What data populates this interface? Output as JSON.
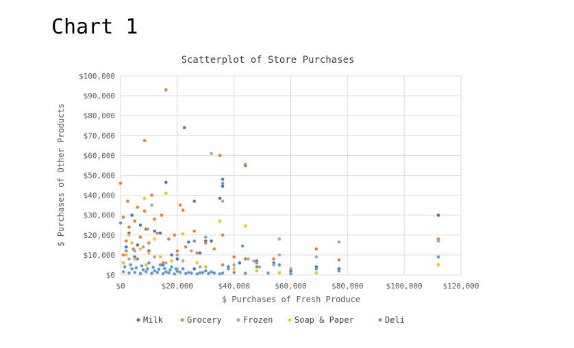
{
  "heading": "Chart 1",
  "chart_data": {
    "type": "scatter",
    "title": "Scatterplot of Store Purchases",
    "xlabel": "$ Purchases of Fresh Produce",
    "ylabel": "$ Purchases of Other Products",
    "xlim": [
      0,
      120000
    ],
    "ylim": [
      0,
      100000
    ],
    "x_ticks": [
      "$0",
      "$20,000",
      "$40,000",
      "$60,000",
      "$80,000",
      "$100,000",
      "$120,000"
    ],
    "y_ticks": [
      "$0",
      "$10,000",
      "$20,000",
      "$30,000",
      "$40,000",
      "$50,000",
      "$60,000",
      "$70,000",
      "$80,000",
      "$90,000",
      "$100,000"
    ],
    "grid": true,
    "legend_position": "bottom",
    "series": [
      {
        "name": "Milk",
        "color": "#4472c4",
        "points": [
          [
            22500,
            74000
          ],
          [
            16000,
            46500
          ],
          [
            26000,
            37000
          ],
          [
            35000,
            38500
          ],
          [
            36000,
            48000
          ],
          [
            36000,
            44500
          ],
          [
            44000,
            55000
          ],
          [
            112000,
            30000
          ],
          [
            4000,
            30000
          ],
          [
            7000,
            25000
          ],
          [
            9000,
            23000
          ],
          [
            12000,
            22000
          ],
          [
            14000,
            21000
          ],
          [
            24000,
            16500
          ],
          [
            30000,
            17000
          ],
          [
            32000,
            17000
          ],
          [
            3000,
            21000
          ],
          [
            6000,
            15000
          ],
          [
            10000,
            12000
          ],
          [
            18000,
            10000
          ],
          [
            2000,
            14000
          ],
          [
            5000,
            9000
          ],
          [
            28000,
            11000
          ],
          [
            48000,
            7000
          ],
          [
            54000,
            6000
          ],
          [
            69000,
            4000
          ],
          [
            77000,
            3000
          ],
          [
            60000,
            2000
          ],
          [
            42000,
            6000
          ],
          [
            38000,
            4000
          ],
          [
            20000,
            8000
          ],
          [
            1000,
            6000
          ],
          [
            15000,
            5000
          ],
          [
            26000,
            3000
          ]
        ]
      },
      {
        "name": "Grocery",
        "color": "#ed7d31",
        "points": [
          [
            16000,
            93000
          ],
          [
            8500,
            67500
          ],
          [
            0,
            46000
          ],
          [
            35000,
            60000
          ],
          [
            44000,
            55500
          ],
          [
            2500,
            37000
          ],
          [
            6000,
            34000
          ],
          [
            11000,
            40000
          ],
          [
            21000,
            35000
          ],
          [
            22000,
            32500
          ],
          [
            8500,
            32000
          ],
          [
            12000,
            28000
          ],
          [
            14500,
            30000
          ],
          [
            1000,
            29000
          ],
          [
            5000,
            27000
          ],
          [
            9500,
            23000
          ],
          [
            13000,
            21000
          ],
          [
            19000,
            20000
          ],
          [
            26000,
            22000
          ],
          [
            36000,
            20000
          ],
          [
            3000,
            24000
          ],
          [
            7000,
            19000
          ],
          [
            10000,
            16000
          ],
          [
            17000,
            18000
          ],
          [
            23000,
            14000
          ],
          [
            30000,
            16000
          ],
          [
            2000,
            17000
          ],
          [
            4500,
            13000
          ],
          [
            20000,
            12000
          ],
          [
            27000,
            11000
          ],
          [
            33000,
            13000
          ],
          [
            40000,
            9000
          ],
          [
            44000,
            8000
          ],
          [
            54000,
            8000
          ],
          [
            69000,
            13000
          ],
          [
            77000,
            7500
          ],
          [
            112000,
            18000
          ],
          [
            48000,
            6000
          ],
          [
            1000,
            10000
          ],
          [
            5000,
            8000
          ],
          [
            15000,
            6000
          ],
          [
            36000,
            5000
          ]
        ]
      },
      {
        "name": "Frozen",
        "color": "#a5a5a5",
        "points": [
          [
            32000,
            61000
          ],
          [
            36000,
            37000
          ],
          [
            11000,
            35000
          ],
          [
            56000,
            18000
          ],
          [
            56000,
            10000
          ],
          [
            77000,
            16500
          ],
          [
            112000,
            17000
          ],
          [
            69000,
            9000
          ],
          [
            47000,
            7000
          ],
          [
            45000,
            8000
          ],
          [
            30000,
            19000
          ],
          [
            25000,
            12000
          ],
          [
            20000,
            10000
          ],
          [
            8000,
            14000
          ],
          [
            3000,
            8000
          ],
          [
            40000,
            5000
          ],
          [
            54000,
            5000
          ],
          [
            16000,
            6000
          ],
          [
            60000,
            3000
          ],
          [
            28000,
            4000
          ],
          [
            12000,
            9000
          ],
          [
            5000,
            12000
          ],
          [
            49000,
            4000
          ],
          [
            22000,
            7000
          ]
        ]
      },
      {
        "name": "Soap & Paper",
        "color": "#ffc000",
        "points": [
          [
            16000,
            41000
          ],
          [
            8500,
            38500
          ],
          [
            35000,
            27000
          ],
          [
            44000,
            24500
          ],
          [
            22000,
            20500
          ],
          [
            12000,
            18000
          ],
          [
            4000,
            16000
          ],
          [
            7000,
            13000
          ],
          [
            10000,
            11000
          ],
          [
            3000,
            20000
          ],
          [
            14000,
            9000
          ],
          [
            18000,
            7000
          ],
          [
            2000,
            10000
          ],
          [
            5000,
            8000
          ],
          [
            112000,
            5000
          ],
          [
            27000,
            6000
          ],
          [
            40000,
            3000
          ],
          [
            56000,
            1000
          ],
          [
            69000,
            1000
          ],
          [
            30000,
            4000
          ],
          [
            1000,
            6000
          ],
          [
            9000,
            5000
          ],
          [
            20000,
            3000
          ],
          [
            48000,
            2000
          ]
        ]
      },
      {
        "name": "Deli",
        "color": "#5b9bd5",
        "points": [
          [
            36000,
            46000
          ],
          [
            43000,
            14500
          ],
          [
            26000,
            17000
          ],
          [
            112000,
            9000
          ],
          [
            56000,
            5000
          ],
          [
            69000,
            3000
          ],
          [
            77000,
            2000
          ],
          [
            0,
            26000
          ],
          [
            2000,
            12000
          ],
          [
            6000,
            8000
          ],
          [
            10000,
            6000
          ],
          [
            14000,
            5000
          ],
          [
            18000,
            4000
          ],
          [
            22000,
            3000
          ],
          [
            30000,
            2000
          ],
          [
            38000,
            3000
          ],
          [
            48000,
            4000
          ],
          [
            4000,
            3000
          ],
          [
            8000,
            2500
          ],
          [
            12000,
            2000
          ],
          [
            16000,
            1500
          ],
          [
            20000,
            1800
          ],
          [
            24000,
            1200
          ],
          [
            28000,
            1000
          ],
          [
            32000,
            1500
          ],
          [
            36000,
            900
          ],
          [
            40000,
            1200
          ],
          [
            44000,
            800
          ],
          [
            52000,
            900
          ],
          [
            60000,
            600
          ],
          [
            1000,
            1500
          ],
          [
            3000,
            900
          ],
          [
            5000,
            1200
          ],
          [
            7000,
            700
          ],
          [
            9000,
            1500
          ],
          [
            11000,
            800
          ],
          [
            13000,
            1200
          ],
          [
            15000,
            600
          ],
          [
            17000,
            1000
          ],
          [
            19000,
            500
          ],
          [
            21000,
            1300
          ],
          [
            23000,
            700
          ],
          [
            25000,
            900
          ],
          [
            27000,
            500
          ],
          [
            29000,
            1100
          ],
          [
            31000,
            700
          ],
          [
            33000,
            900
          ],
          [
            35000,
            500
          ],
          [
            1500,
            4000
          ],
          [
            3500,
            5000
          ],
          [
            5500,
            3500
          ],
          [
            7500,
            4500
          ],
          [
            9500,
            3000
          ],
          [
            11500,
            3800
          ],
          [
            13500,
            2800
          ],
          [
            15500,
            3200
          ],
          [
            17500,
            2500
          ],
          [
            19500,
            3000
          ]
        ]
      }
    ]
  }
}
